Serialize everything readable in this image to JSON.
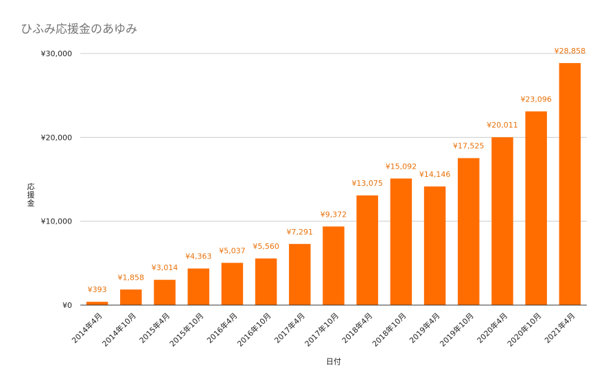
{
  "chart_data": {
    "type": "bar",
    "title": "ひふみ応援金のあゆみ",
    "xlabel": "日付",
    "ylabel": "応援金",
    "ylim": [
      0,
      30000
    ],
    "yticks": [
      "¥0",
      "¥10,000",
      "¥20,000",
      "¥30,000"
    ],
    "grid": true,
    "legend": "none",
    "color": "#ff6d01",
    "label_color": "#e8710a",
    "categories": [
      "2014年4月",
      "2014年10月",
      "2015年4月",
      "2015年10月",
      "2016年4月",
      "2016年10月",
      "2017年4月",
      "2017年10月",
      "2018年4月",
      "2018年10月",
      "2019年4月",
      "2019年10月",
      "2020年4月",
      "2020年10月",
      "2021年4月"
    ],
    "values": [
      393,
      1858,
      3014,
      4363,
      5037,
      5560,
      7291,
      9372,
      13075,
      15092,
      14146,
      17525,
      20011,
      23096,
      28858
    ],
    "data_labels": [
      "¥393",
      "¥1,858",
      "¥3,014",
      "¥4,363",
      "¥5,037",
      "¥5,560",
      "¥7,291",
      "¥9,372",
      "¥13,075",
      "¥15,092",
      "¥14,146",
      "¥17,525",
      "¥20,011",
      "¥23,096",
      "¥28,858"
    ]
  }
}
